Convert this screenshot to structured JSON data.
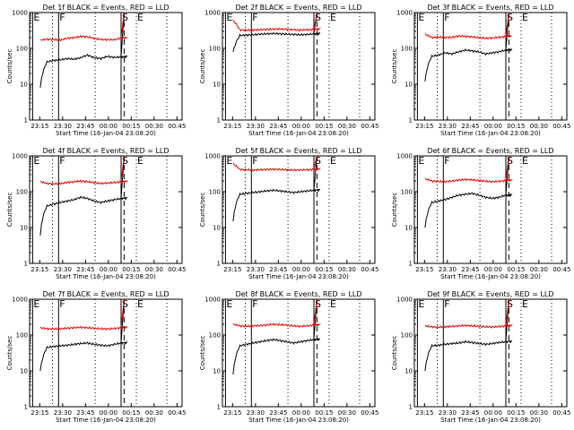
{
  "figure": {
    "background": "#ffffff",
    "axis_color": "#000000"
  },
  "chart_data": [
    {
      "type": "line",
      "title": "Det 1f BLACK = Events, RED = LLD",
      "xlabel": "Start Time (16-Jan-04 23:08:20)",
      "ylabel": "Counts/sec",
      "yscale": "log",
      "ylim": [
        1,
        1000
      ],
      "x_ticks": [
        "23:15",
        "23:30",
        "23:45",
        "00:00",
        "00:15",
        "00:30",
        "00:45"
      ],
      "y_ticks": [
        "1",
        "10",
        "100",
        "1000"
      ],
      "series": [
        {
          "name": "Events",
          "color": "#000000",
          "values": [
            8,
            42,
            46,
            48,
            52,
            50,
            55,
            65,
            55,
            52,
            60,
            56,
            58,
            1000
          ]
        },
        {
          "name": "LLD",
          "color": "#e00000",
          "values": [
            170,
            180,
            175,
            172,
            190,
            200,
            215,
            210,
            190,
            178,
            175,
            175,
            195,
            1000
          ]
        }
      ],
      "markers": {
        "solid": [
          "E",
          "F",
          "S"
        ],
        "dashed": [
          "D"
        ],
        "dotted": [],
        "letters": [
          "E",
          "F",
          "S",
          "E"
        ]
      }
    },
    {
      "type": "line",
      "title": "Det 2f BLACK = Events, RED = LLD",
      "xlabel": "Start Time (16-Jan-04 23:08:20)",
      "ylabel": "Counts/sec",
      "yscale": "log",
      "ylim": [
        1,
        1000
      ],
      "x_ticks": [
        "23:15",
        "23:30",
        "23:45",
        "00:00",
        "00:15",
        "00:30",
        "00:45"
      ],
      "y_ticks": [
        "1",
        "10",
        "100",
        "1000"
      ],
      "series": [
        {
          "name": "Events",
          "color": "#000000",
          "values": [
            80,
            230,
            235,
            240,
            250,
            255,
            260,
            255,
            250,
            245,
            240,
            245,
            255,
            1000
          ]
        },
        {
          "name": "LLD",
          "color": "#e00000",
          "values": [
            600,
            330,
            320,
            325,
            330,
            340,
            345,
            350,
            340,
            330,
            325,
            330,
            340,
            1000
          ]
        }
      ],
      "markers": {
        "solid": [
          "E",
          "F",
          "S"
        ],
        "dashed": [
          "D"
        ],
        "dotted": [],
        "letters": [
          "E",
          "F",
          "S",
          "E"
        ]
      }
    },
    {
      "type": "line",
      "title": "Det 3f BLACK = Events, RED = LLD",
      "xlabel": "Start Time (16-Jan-04 23:08:20)",
      "ylabel": "Counts/sec",
      "yscale": "log",
      "ylim": [
        1,
        1000
      ],
      "x_ticks": [
        "23:15",
        "23:30",
        "23:45",
        "00:00",
        "00:15",
        "00:30",
        "00:45"
      ],
      "y_ticks": [
        "1",
        "10",
        "100",
        "1000"
      ],
      "series": [
        {
          "name": "Events",
          "color": "#000000",
          "values": [
            12,
            60,
            65,
            75,
            70,
            80,
            90,
            85,
            80,
            70,
            75,
            80,
            90,
            1000
          ]
        },
        {
          "name": "LLD",
          "color": "#e00000",
          "values": [
            250,
            200,
            210,
            200,
            205,
            220,
            215,
            210,
            200,
            190,
            195,
            205,
            215,
            1000
          ]
        }
      ],
      "markers": {
        "solid": [
          "E",
          "F",
          "S"
        ],
        "dashed": [
          "D"
        ],
        "dotted": [],
        "letters": [
          "E",
          "F",
          "S",
          "E"
        ]
      }
    },
    {
      "type": "line",
      "title": "Det 4f BLACK = Events, RED = LLD",
      "xlabel": "Start Time (16-Jan-04 23:08:20)",
      "ylabel": "Counts/sec",
      "yscale": "log",
      "ylim": [
        1,
        1000
      ],
      "x_ticks": [
        "23:15",
        "23:30",
        "23:45",
        "00:00",
        "00:15",
        "00:30",
        "00:45"
      ],
      "y_ticks": [
        "1",
        "10",
        "100",
        "1000"
      ],
      "series": [
        {
          "name": "Events",
          "color": "#000000",
          "values": [
            6,
            40,
            45,
            50,
            55,
            60,
            70,
            65,
            55,
            50,
            55,
            60,
            65,
            1000
          ]
        },
        {
          "name": "LLD",
          "color": "#e00000",
          "values": [
            190,
            170,
            165,
            170,
            180,
            190,
            200,
            190,
            180,
            170,
            175,
            180,
            190,
            1000
          ]
        }
      ],
      "markers": {
        "solid": [
          "E",
          "F",
          "S"
        ],
        "dashed": [
          "D"
        ],
        "dotted": [],
        "letters": [
          "E",
          "F",
          "S",
          "E"
        ]
      }
    },
    {
      "type": "line",
      "title": "Det 5f BLACK = Events, RED = LLD",
      "xlabel": "Start Time (16-Jan-04 23:08:20)",
      "ylabel": "Counts/sec",
      "yscale": "log",
      "ylim": [
        1,
        1000
      ],
      "x_ticks": [
        "23:15",
        "23:30",
        "23:45",
        "00:00",
        "00:15",
        "00:30",
        "00:45"
      ],
      "y_ticks": [
        "1",
        "10",
        "100",
        "1000"
      ],
      "series": [
        {
          "name": "Events",
          "color": "#000000",
          "values": [
            15,
            85,
            90,
            95,
            100,
            105,
            110,
            105,
            100,
            95,
            100,
            105,
            110,
            1000
          ]
        },
        {
          "name": "LLD",
          "color": "#e00000",
          "values": [
            600,
            420,
            410,
            400,
            410,
            420,
            425,
            420,
            410,
            400,
            405,
            410,
            420,
            1000
          ]
        }
      ],
      "markers": {
        "solid": [
          "E",
          "F",
          "S"
        ],
        "dashed": [
          "D"
        ],
        "dotted": [],
        "letters": [
          "E",
          "F",
          "S",
          "E"
        ]
      }
    },
    {
      "type": "line",
      "title": "Det 6f BLACK = Events, RED = LLD",
      "xlabel": "Start Time (16-Jan-04 23:08:20)",
      "ylabel": "Counts/sec",
      "yscale": "log",
      "ylim": [
        1,
        1000
      ],
      "x_ticks": [
        "23:15",
        "23:30",
        "23:45",
        "00:00",
        "00:15",
        "00:30",
        "00:45"
      ],
      "y_ticks": [
        "1",
        "10",
        "100",
        "1000"
      ],
      "series": [
        {
          "name": "Events",
          "color": "#000000",
          "values": [
            10,
            50,
            55,
            60,
            70,
            80,
            85,
            90,
            80,
            70,
            65,
            70,
            80,
            1000
          ]
        },
        {
          "name": "LLD",
          "color": "#e00000",
          "values": [
            230,
            200,
            195,
            190,
            200,
            210,
            220,
            215,
            205,
            195,
            190,
            195,
            205,
            1000
          ]
        }
      ],
      "markers": {
        "solid": [
          "E",
          "F",
          "S"
        ],
        "dashed": [
          "D"
        ],
        "dotted": [],
        "letters": [
          "E",
          "F",
          "S",
          "E"
        ]
      }
    },
    {
      "type": "line",
      "title": "Det 7f BLACK = Events, RED = LLD",
      "xlabel": "Start Time (16-Jan-04 23:08:20)",
      "ylabel": "Counts/sec",
      "yscale": "log",
      "ylim": [
        1,
        1000
      ],
      "x_ticks": [
        "23:15",
        "23:30",
        "23:45",
        "00:00",
        "00:15",
        "00:30",
        "00:45"
      ],
      "y_ticks": [
        "1",
        "10",
        "100",
        "1000"
      ],
      "series": [
        {
          "name": "Events",
          "color": "#000000",
          "values": [
            10,
            45,
            48,
            50,
            52,
            55,
            58,
            60,
            55,
            52,
            50,
            55,
            60,
            1000
          ]
        },
        {
          "name": "LLD",
          "color": "#e00000",
          "values": [
            160,
            150,
            148,
            150,
            155,
            160,
            165,
            160,
            155,
            150,
            148,
            152,
            160,
            1000
          ]
        }
      ],
      "markers": {
        "solid": [
          "E",
          "F",
          "S"
        ],
        "dashed": [
          "D"
        ],
        "dotted": [],
        "letters": [
          "E",
          "F",
          "S",
          "E"
        ]
      }
    },
    {
      "type": "line",
      "title": "Det 8f BLACK = Events, RED = LLD",
      "xlabel": "Start Time (16-Jan-04 23:08:20)",
      "ylabel": "Counts/sec",
      "yscale": "log",
      "ylim": [
        1,
        1000
      ],
      "x_ticks": [
        "23:15",
        "23:30",
        "23:45",
        "00:00",
        "00:15",
        "00:30",
        "00:45"
      ],
      "y_ticks": [
        "1",
        "10",
        "100",
        "1000"
      ],
      "series": [
        {
          "name": "Events",
          "color": "#000000",
          "values": [
            8,
            50,
            55,
            60,
            65,
            70,
            75,
            70,
            65,
            60,
            65,
            70,
            75,
            1000
          ]
        },
        {
          "name": "LLD",
          "color": "#e00000",
          "values": [
            200,
            180,
            175,
            180,
            185,
            190,
            200,
            195,
            190,
            180,
            175,
            180,
            190,
            1000
          ]
        }
      ],
      "markers": {
        "solid": [
          "E",
          "F",
          "S"
        ],
        "dashed": [
          "D"
        ],
        "dotted": [],
        "letters": [
          "E",
          "F",
          "S",
          "E"
        ]
      }
    },
    {
      "type": "line",
      "title": "Det 9f BLACK = Events, RED = LLD",
      "xlabel": "Start Time (16-Jan-04 23:08:20)",
      "ylabel": "Counts/sec",
      "yscale": "log",
      "ylim": [
        1,
        1000
      ],
      "x_ticks": [
        "23:15",
        "23:30",
        "23:45",
        "00:00",
        "00:15",
        "00:30",
        "00:45"
      ],
      "y_ticks": [
        "1",
        "10",
        "100",
        "1000"
      ],
      "series": [
        {
          "name": "Events",
          "color": "#000000",
          "values": [
            10,
            50,
            52,
            55,
            58,
            60,
            65,
            62,
            58,
            55,
            58,
            62,
            65,
            1000
          ]
        },
        {
          "name": "LLD",
          "color": "#e00000",
          "values": [
            180,
            170,
            165,
            170,
            175,
            180,
            185,
            180,
            175,
            170,
            168,
            172,
            180,
            1000
          ]
        }
      ],
      "markers": {
        "solid": [
          "E",
          "F",
          "S"
        ],
        "dashed": [
          "D"
        ],
        "dotted": [],
        "letters": [
          "E",
          "F",
          "S",
          "E"
        ]
      }
    }
  ]
}
